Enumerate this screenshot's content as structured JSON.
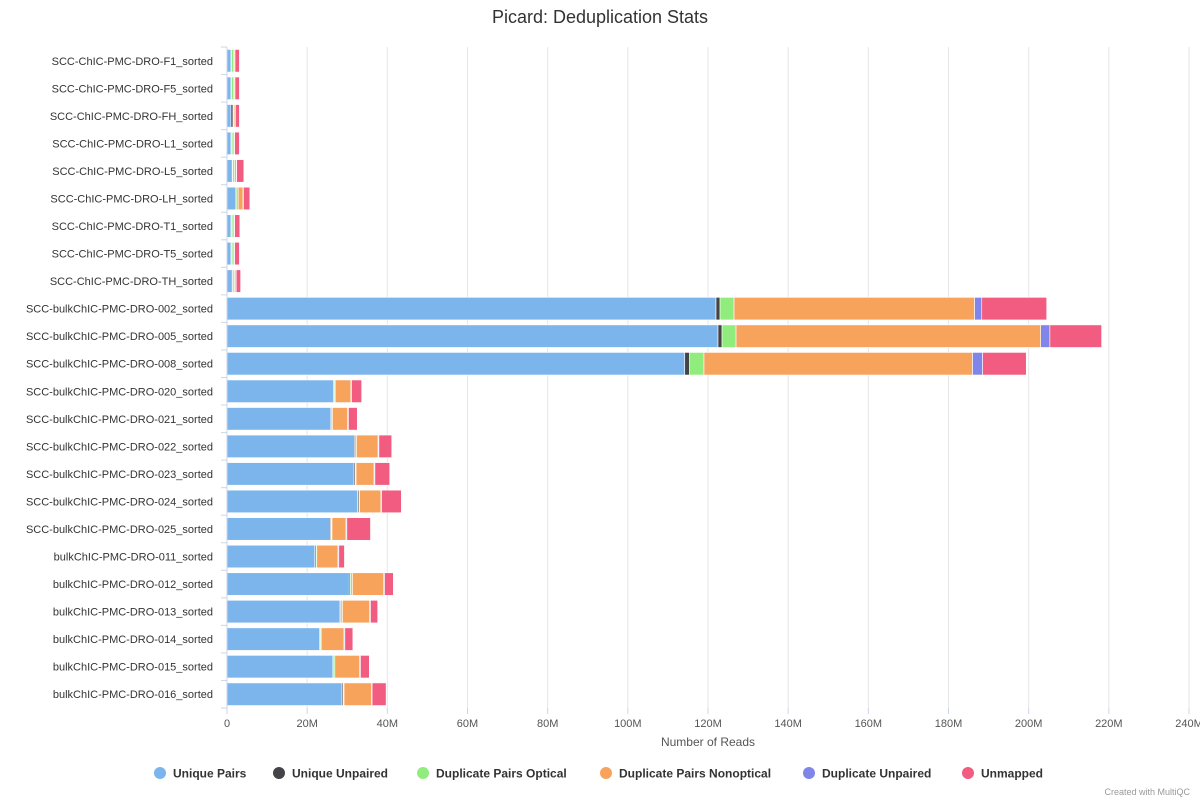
{
  "chart_data": {
    "type": "bar",
    "orientation": "horizontal",
    "stacked": true,
    "title": "Picard: Deduplication Stats",
    "xlabel": "Number of Reads",
    "ylabel": "",
    "xlim": [
      0,
      240000000
    ],
    "xticks": [
      {
        "value": 0,
        "label": "0"
      },
      {
        "value": 20000000,
        "label": "20M"
      },
      {
        "value": 40000000,
        "label": "40M"
      },
      {
        "value": 60000000,
        "label": "60M"
      },
      {
        "value": 80000000,
        "label": "80M"
      },
      {
        "value": 100000000,
        "label": "100M"
      },
      {
        "value": 120000000,
        "label": "120M"
      },
      {
        "value": 140000000,
        "label": "140M"
      },
      {
        "value": 160000000,
        "label": "160M"
      },
      {
        "value": 180000000,
        "label": "180M"
      },
      {
        "value": 200000000,
        "label": "200M"
      },
      {
        "value": 220000000,
        "label": "220M"
      },
      {
        "value": 240000000,
        "label": "240M"
      }
    ],
    "grid": "vertical",
    "legend_position": "bottom",
    "categories": [
      "SCC-ChIC-PMC-DRO-F1_sorted",
      "SCC-ChIC-PMC-DRO-F5_sorted",
      "SCC-ChIC-PMC-DRO-FH_sorted",
      "SCC-ChIC-PMC-DRO-L1_sorted",
      "SCC-ChIC-PMC-DRO-L5_sorted",
      "SCC-ChIC-PMC-DRO-LH_sorted",
      "SCC-ChIC-PMC-DRO-T1_sorted",
      "SCC-ChIC-PMC-DRO-T5_sorted",
      "SCC-ChIC-PMC-DRO-TH_sorted",
      "SCC-bulkChIC-PMC-DRO-002_sorted",
      "SCC-bulkChIC-PMC-DRO-005_sorted",
      "SCC-bulkChIC-PMC-DRO-008_sorted",
      "SCC-bulkChIC-PMC-DRO-020_sorted",
      "SCC-bulkChIC-PMC-DRO-021_sorted",
      "SCC-bulkChIC-PMC-DRO-022_sorted",
      "SCC-bulkChIC-PMC-DRO-023_sorted",
      "SCC-bulkChIC-PMC-DRO-024_sorted",
      "SCC-bulkChIC-PMC-DRO-025_sorted",
      "bulkChIC-PMC-DRO-011_sorted",
      "bulkChIC-PMC-DRO-012_sorted",
      "bulkChIC-PMC-DRO-013_sorted",
      "bulkChIC-PMC-DRO-014_sorted",
      "bulkChIC-PMC-DRO-015_sorted",
      "bulkChIC-PMC-DRO-016_sorted"
    ],
    "series": [
      {
        "name": "Unique Pairs",
        "color": "#7cb5ec",
        "values": [
          1000000,
          1000000,
          1000000,
          1000000,
          1300000,
          2200000,
          1000000,
          1000000,
          1300000,
          122000000,
          122500000,
          114200000,
          26600000,
          25900000,
          31800000,
          31700000,
          32600000,
          25800000,
          21900000,
          30500000,
          28200000,
          23100000,
          26400000,
          28700000
        ]
      },
      {
        "name": "Unique Unpaired",
        "color": "#434348",
        "values": [
          100000,
          100000,
          500000,
          100000,
          100000,
          100000,
          100000,
          100000,
          200000,
          1000000,
          1000000,
          1200000,
          200000,
          200000,
          300000,
          300000,
          300000,
          200000,
          300000,
          300000,
          200000,
          200000,
          200000,
          300000
        ]
      },
      {
        "name": "Duplicate Pairs Optical",
        "color": "#90ed7d",
        "values": [
          500000,
          500000,
          200000,
          400000,
          500000,
          500000,
          400000,
          400000,
          400000,
          3500000,
          3500000,
          3600000,
          200000,
          200000,
          200000,
          200000,
          200000,
          200000,
          200000,
          500000,
          400000,
          200000,
          300000,
          200000
        ]
      },
      {
        "name": "Duplicate Pairs Nonoptical",
        "color": "#f7a35c",
        "values": [
          300000,
          300000,
          300000,
          300000,
          400000,
          1200000,
          300000,
          300000,
          300000,
          60000000,
          76000000,
          67000000,
          3900000,
          3800000,
          5400000,
          4500000,
          5300000,
          3500000,
          5300000,
          7800000,
          6800000,
          5700000,
          6200000,
          6800000
        ]
      },
      {
        "name": "Duplicate Unpaired",
        "color": "#8085e9",
        "values": [
          100000,
          100000,
          100000,
          100000,
          100000,
          100000,
          100000,
          100000,
          100000,
          1800000,
          2300000,
          2500000,
          200000,
          200000,
          200000,
          200000,
          200000,
          200000,
          200000,
          200000,
          200000,
          200000,
          200000,
          200000
        ]
      },
      {
        "name": "Unmapped",
        "color": "#f15c80",
        "values": [
          1100000,
          1100000,
          1000000,
          1200000,
          1800000,
          1600000,
          1300000,
          1200000,
          1100000,
          16200000,
          12900000,
          10900000,
          2500000,
          2200000,
          3200000,
          3700000,
          4900000,
          5900000,
          1400000,
          2200000,
          1800000,
          2000000,
          2200000,
          3500000
        ]
      }
    ]
  },
  "credit": "Created with MultiQC"
}
